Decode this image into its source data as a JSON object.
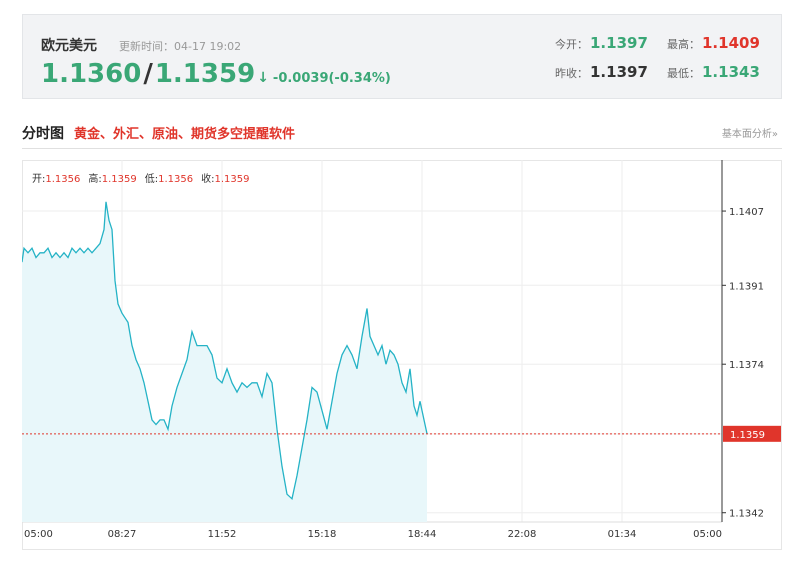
{
  "quote": {
    "name": "欧元美元",
    "time": "更新时间：04-17 19:02",
    "bid": "1.1360",
    "sep": "/",
    "ask": "1.1359",
    "arrow": "↓",
    "change": "-0.0039(-0.34%)",
    "open_label": "今开：",
    "open_value": "1.1397",
    "high_label": "最高：",
    "high_value": "1.1409",
    "prev_label": "昨收：",
    "prev_value": "1.1397",
    "low_label": "最低：",
    "low_value": "1.1343"
  },
  "section": {
    "title": "分时图",
    "promo": "黄金、外汇、原油、期货多空提醒软件",
    "link": "基本面分析»"
  },
  "ohlc": {
    "open_label": "开:",
    "open": "1.1356",
    "high_label": "高:",
    "high": "1.1359",
    "low_label": "低:",
    "low": "1.1356",
    "close_label": "收:",
    "close": "1.1359"
  },
  "colors": {
    "line": "#25b3c6",
    "area": "#e8f7fa",
    "down": "#3aa776",
    "up": "#e0352b",
    "current_tag": "#e0352b"
  },
  "chart_data": {
    "type": "area",
    "x_ticks": [
      "05:00",
      "08:27",
      "11:52",
      "15:18",
      "18:44",
      "22:08",
      "01:34",
      "05:00"
    ],
    "y_ticks": [
      1.1407,
      1.1391,
      1.1374,
      1.1359,
      1.1342
    ],
    "ylim": [
      1.134,
      1.1418
    ],
    "current_price": 1.1359,
    "current_label": "1.1359",
    "grid": true,
    "series": [
      {
        "values": [
          [
            0,
            1.1396
          ],
          [
            0.02,
            1.1399
          ],
          [
            0.06,
            1.1398
          ],
          [
            0.1,
            1.1399
          ],
          [
            0.14,
            1.1397
          ],
          [
            0.18,
            1.1398
          ],
          [
            0.22,
            1.1398
          ],
          [
            0.26,
            1.1399
          ],
          [
            0.3,
            1.1397
          ],
          [
            0.34,
            1.1398
          ],
          [
            0.38,
            1.1397
          ],
          [
            0.42,
            1.1398
          ],
          [
            0.46,
            1.1397
          ],
          [
            0.5,
            1.1399
          ],
          [
            0.54,
            1.1398
          ],
          [
            0.58,
            1.1399
          ],
          [
            0.62,
            1.1398
          ],
          [
            0.66,
            1.1399
          ],
          [
            0.7,
            1.1398
          ],
          [
            0.74,
            1.1399
          ],
          [
            0.78,
            1.14
          ],
          [
            0.82,
            1.1403
          ],
          [
            0.84,
            1.1409
          ],
          [
            0.87,
            1.1405
          ],
          [
            0.9,
            1.1403
          ],
          [
            0.93,
            1.1392
          ],
          [
            0.96,
            1.1387
          ],
          [
            1.0,
            1.1385
          ],
          [
            1.03,
            1.1384
          ],
          [
            1.06,
            1.1383
          ],
          [
            1.1,
            1.1378
          ],
          [
            1.14,
            1.1375
          ],
          [
            1.18,
            1.1373
          ],
          [
            1.22,
            1.137
          ],
          [
            1.26,
            1.1366
          ],
          [
            1.3,
            1.1362
          ],
          [
            1.34,
            1.1361
          ],
          [
            1.38,
            1.1362
          ],
          [
            1.42,
            1.1362
          ],
          [
            1.46,
            1.136
          ],
          [
            1.5,
            1.1365
          ],
          [
            1.55,
            1.1369
          ],
          [
            1.6,
            1.1372
          ],
          [
            1.65,
            1.1375
          ],
          [
            1.7,
            1.1381
          ],
          [
            1.75,
            1.1378
          ],
          [
            1.8,
            1.1378
          ],
          [
            1.85,
            1.1378
          ],
          [
            1.9,
            1.1376
          ],
          [
            1.95,
            1.1371
          ],
          [
            2.0,
            1.137
          ],
          [
            2.05,
            1.1373
          ],
          [
            2.1,
            1.137
          ],
          [
            2.15,
            1.1368
          ],
          [
            2.2,
            1.137
          ],
          [
            2.25,
            1.1369
          ],
          [
            2.3,
            1.137
          ],
          [
            2.35,
            1.137
          ],
          [
            2.4,
            1.1367
          ],
          [
            2.45,
            1.1372
          ],
          [
            2.5,
            1.137
          ],
          [
            2.55,
            1.136
          ],
          [
            2.6,
            1.1352
          ],
          [
            2.65,
            1.1346
          ],
          [
            2.7,
            1.1345
          ],
          [
            2.75,
            1.135
          ],
          [
            2.8,
            1.1356
          ],
          [
            2.85,
            1.1362
          ],
          [
            2.9,
            1.1369
          ],
          [
            2.95,
            1.1368
          ],
          [
            3.0,
            1.1364
          ],
          [
            3.05,
            1.136
          ],
          [
            3.1,
            1.1366
          ],
          [
            3.15,
            1.1372
          ],
          [
            3.2,
            1.1376
          ],
          [
            3.25,
            1.1378
          ],
          [
            3.3,
            1.1376
          ],
          [
            3.35,
            1.1373
          ],
          [
            3.4,
            1.138
          ],
          [
            3.45,
            1.1386
          ],
          [
            3.48,
            1.138
          ],
          [
            3.52,
            1.1378
          ],
          [
            3.56,
            1.1376
          ],
          [
            3.6,
            1.1378
          ],
          [
            3.64,
            1.1374
          ],
          [
            3.68,
            1.1377
          ],
          [
            3.72,
            1.1376
          ],
          [
            3.76,
            1.1374
          ],
          [
            3.8,
            1.137
          ],
          [
            3.84,
            1.1368
          ],
          [
            3.88,
            1.1373
          ],
          [
            3.92,
            1.1365
          ],
          [
            3.95,
            1.1363
          ],
          [
            3.98,
            1.1366
          ],
          [
            4.02,
            1.1362
          ],
          [
            4.05,
            1.1359
          ]
        ]
      }
    ]
  }
}
